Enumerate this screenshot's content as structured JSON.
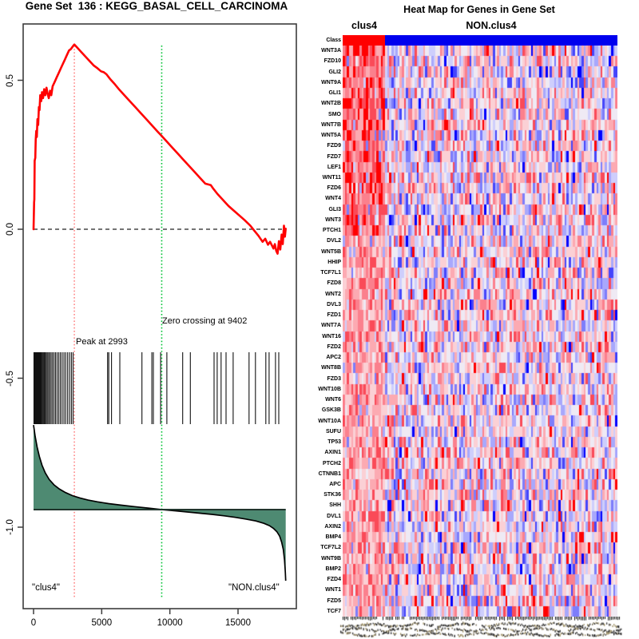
{
  "chart_data": [
    {
      "type": "line",
      "title": "Gene Set  136 : KEGG_BASAL_CELL_CARCINOMA",
      "xlabel": "",
      "ylabel": "",
      "xlim": [
        0,
        18500
      ],
      "ylim": [
        -1.27,
        0.69
      ],
      "x_ticks": [
        0,
        5000,
        10000,
        15000
      ],
      "y_ticks": [
        0.5,
        0.0,
        -0.5,
        -1.0
      ],
      "grid": false,
      "zero_es_line": 0.0,
      "peak_rank": 2993,
      "zero_cross_rank": 9402,
      "annotations": [
        {
          "text": "Peak at 2993",
          "x": 2993
        },
        {
          "text": "Zero crossing at 9402",
          "x": 9402
        }
      ],
      "phenotype_labels": {
        "left": "\"clus4\"",
        "right": "\"NON.clus4\""
      },
      "colors": {
        "es_curve": "#ff0000",
        "peak_line": "#ff8585",
        "zero_cross_line": "#00c233",
        "metric_fill": "#4e8a72",
        "hits": "#111111",
        "dashed_zero": "#222222"
      },
      "series": [
        {
          "name": "running_enrichment_score",
          "points": [
            [
              0,
              0
            ],
            [
              40,
              0.09
            ],
            [
              60,
              0.1
            ],
            [
              80,
              0.23
            ],
            [
              130,
              0.24
            ],
            [
              160,
              0.3
            ],
            [
              200,
              0.33
            ],
            [
              240,
              0.31
            ],
            [
              290,
              0.37
            ],
            [
              340,
              0.35
            ],
            [
              390,
              0.41
            ],
            [
              440,
              0.4
            ],
            [
              490,
              0.45
            ],
            [
              560,
              0.43
            ],
            [
              620,
              0.46
            ],
            [
              700,
              0.44
            ],
            [
              780,
              0.47
            ],
            [
              860,
              0.45
            ],
            [
              950,
              0.475
            ],
            [
              1030,
              0.455
            ],
            [
              1120,
              0.44
            ],
            [
              1210,
              0.465
            ],
            [
              1300,
              0.45
            ],
            [
              1400,
              0.48
            ],
            [
              1550,
              0.495
            ],
            [
              1700,
              0.51
            ],
            [
              1850,
              0.525
            ],
            [
              2000,
              0.54
            ],
            [
              2150,
              0.555
            ],
            [
              2300,
              0.57
            ],
            [
              2450,
              0.585
            ],
            [
              2600,
              0.6
            ],
            [
              2750,
              0.605
            ],
            [
              2900,
              0.615
            ],
            [
              2993,
              0.62
            ],
            [
              3200,
              0.61
            ],
            [
              3500,
              0.595
            ],
            [
              3800,
              0.58
            ],
            [
              4100,
              0.565
            ],
            [
              4400,
              0.55
            ],
            [
              4700,
              0.54
            ],
            [
              4950,
              0.53
            ],
            [
              5150,
              0.527
            ],
            [
              5350,
              0.52
            ],
            [
              5600,
              0.505
            ],
            [
              5900,
              0.49
            ],
            [
              6300,
              0.468
            ],
            [
              6700,
              0.448
            ],
            [
              7100,
              0.428
            ],
            [
              7500,
              0.408
            ],
            [
              7900,
              0.388
            ],
            [
              8300,
              0.368
            ],
            [
              8700,
              0.348
            ],
            [
              9100,
              0.328
            ],
            [
              9402,
              0.313
            ],
            [
              9800,
              0.293
            ],
            [
              10200,
              0.273
            ],
            [
              10600,
              0.253
            ],
            [
              11000,
              0.233
            ],
            [
              11400,
              0.213
            ],
            [
              11800,
              0.193
            ],
            [
              12200,
              0.173
            ],
            [
              12600,
              0.153
            ],
            [
              13000,
              0.148
            ],
            [
              13200,
              0.135
            ],
            [
              13500,
              0.118
            ],
            [
              13900,
              0.098
            ],
            [
              14300,
              0.078
            ],
            [
              14700,
              0.062
            ],
            [
              15100,
              0.046
            ],
            [
              15500,
              0.03
            ],
            [
              15900,
              0.012
            ],
            [
              16200,
              -0.005
            ],
            [
              16500,
              -0.022
            ],
            [
              16800,
              -0.042
            ],
            [
              17000,
              -0.032
            ],
            [
              17200,
              -0.052
            ],
            [
              17350,
              -0.042
            ],
            [
              17600,
              -0.065
            ],
            [
              17700,
              -0.05
            ],
            [
              17800,
              -0.072
            ],
            [
              17900,
              -0.082
            ],
            [
              18000,
              -0.04
            ],
            [
              18100,
              -0.068
            ],
            [
              18200,
              -0.018
            ],
            [
              18280,
              -0.05
            ],
            [
              18370,
              0.012
            ],
            [
              18440,
              -0.025
            ],
            [
              18500,
              0.002
            ]
          ]
        },
        {
          "name": "ranking_metric",
          "baseline_es": -0.941,
          "points": [
            [
              0,
              -0.657
            ],
            [
              120,
              -0.695
            ],
            [
              260,
              -0.73
            ],
            [
              420,
              -0.762
            ],
            [
              620,
              -0.792
            ],
            [
              860,
              -0.818
            ],
            [
              1150,
              -0.84
            ],
            [
              1500,
              -0.858
            ],
            [
              1900,
              -0.872
            ],
            [
              2350,
              -0.884
            ],
            [
              2850,
              -0.894
            ],
            [
              3400,
              -0.902
            ],
            [
              4000,
              -0.909
            ],
            [
              4700,
              -0.915
            ],
            [
              5500,
              -0.921
            ],
            [
              6400,
              -0.926
            ],
            [
              7400,
              -0.931
            ],
            [
              8400,
              -0.936
            ],
            [
              9402,
              -0.941
            ],
            [
              10400,
              -0.945
            ],
            [
              11300,
              -0.949
            ],
            [
              12200,
              -0.953
            ],
            [
              13100,
              -0.957
            ],
            [
              14000,
              -0.962
            ],
            [
              14800,
              -0.967
            ],
            [
              15600,
              -0.973
            ],
            [
              16300,
              -0.979
            ],
            [
              16900,
              -0.987
            ],
            [
              17300,
              -0.995
            ],
            [
              17600,
              -1.004
            ],
            [
              17850,
              -1.015
            ],
            [
              18050,
              -1.03
            ],
            [
              18200,
              -1.05
            ],
            [
              18320,
              -1.075
            ],
            [
              18410,
              -1.11
            ],
            [
              18470,
              -1.15
            ],
            [
              18500,
              -1.18
            ]
          ]
        }
      ],
      "hit_ranks": [
        30,
        90,
        150,
        210,
        270,
        330,
        390,
        450,
        510,
        570,
        640,
        710,
        780,
        850,
        930,
        1010,
        1100,
        1190,
        1290,
        1390,
        1500,
        1610,
        1730,
        1850,
        1970,
        2100,
        2230,
        2360,
        2500,
        2640,
        2780,
        2900,
        5430,
        5520,
        5720,
        6330,
        7950,
        8680,
        8790,
        9320,
        9780,
        10940,
        11500,
        13240,
        13470,
        13760,
        14120,
        14640,
        15810,
        16280,
        17040,
        17280,
        17750,
        17990
      ]
    },
    {
      "type": "heatmap",
      "title": "Heat Map for Genes in Gene Set",
      "class_row_label": "Class",
      "classes": [
        {
          "name": "clus4",
          "color": "#ff0000",
          "columns": 20
        },
        {
          "name": "NON.clus4",
          "color": "#0000ee",
          "columns": 110
        }
      ],
      "genes": [
        "WNT3A",
        "FZD10",
        "GLI2",
        "WNT9A",
        "GLI1",
        "WNT2B",
        "SMO",
        "WNT7B",
        "WNT5A",
        "FZD9",
        "FZD7",
        "LEF1",
        "WNT11",
        "FZD6",
        "WNT4",
        "GLI3",
        "WNT3",
        "PTCH1",
        "DVL2",
        "WNT5B",
        "HHIP",
        "TCF7L1",
        "FZD8",
        "WNT2",
        "DVL3",
        "FZD1",
        "WNT7A",
        "WNT16",
        "FZD2",
        "APC2",
        "WNT8B",
        "FZD3",
        "WNT10B",
        "WNT6",
        "GSK3B",
        "WNT10A",
        "SUFU",
        "TP53",
        "AXIN1",
        "PTCH2",
        "CTNNB1",
        "APC",
        "STK36",
        "SHH",
        "DVL1",
        "AXIN2",
        "BMP4",
        "TCF7L2",
        "WNT9B",
        "BMP2",
        "FZD4",
        "WNT1",
        "FZD5",
        "TCF7"
      ],
      "palette": [
        "#0000ff",
        "#4545fb",
        "#7d7dfb",
        "#a8a8fc",
        "#cecefc",
        "#efeaf4",
        "#fbd0d5",
        "#fcaab2",
        "#fb808d",
        "#fa4a58",
        "#ff0000"
      ],
      "legend": "none",
      "seed": 136
    }
  ]
}
